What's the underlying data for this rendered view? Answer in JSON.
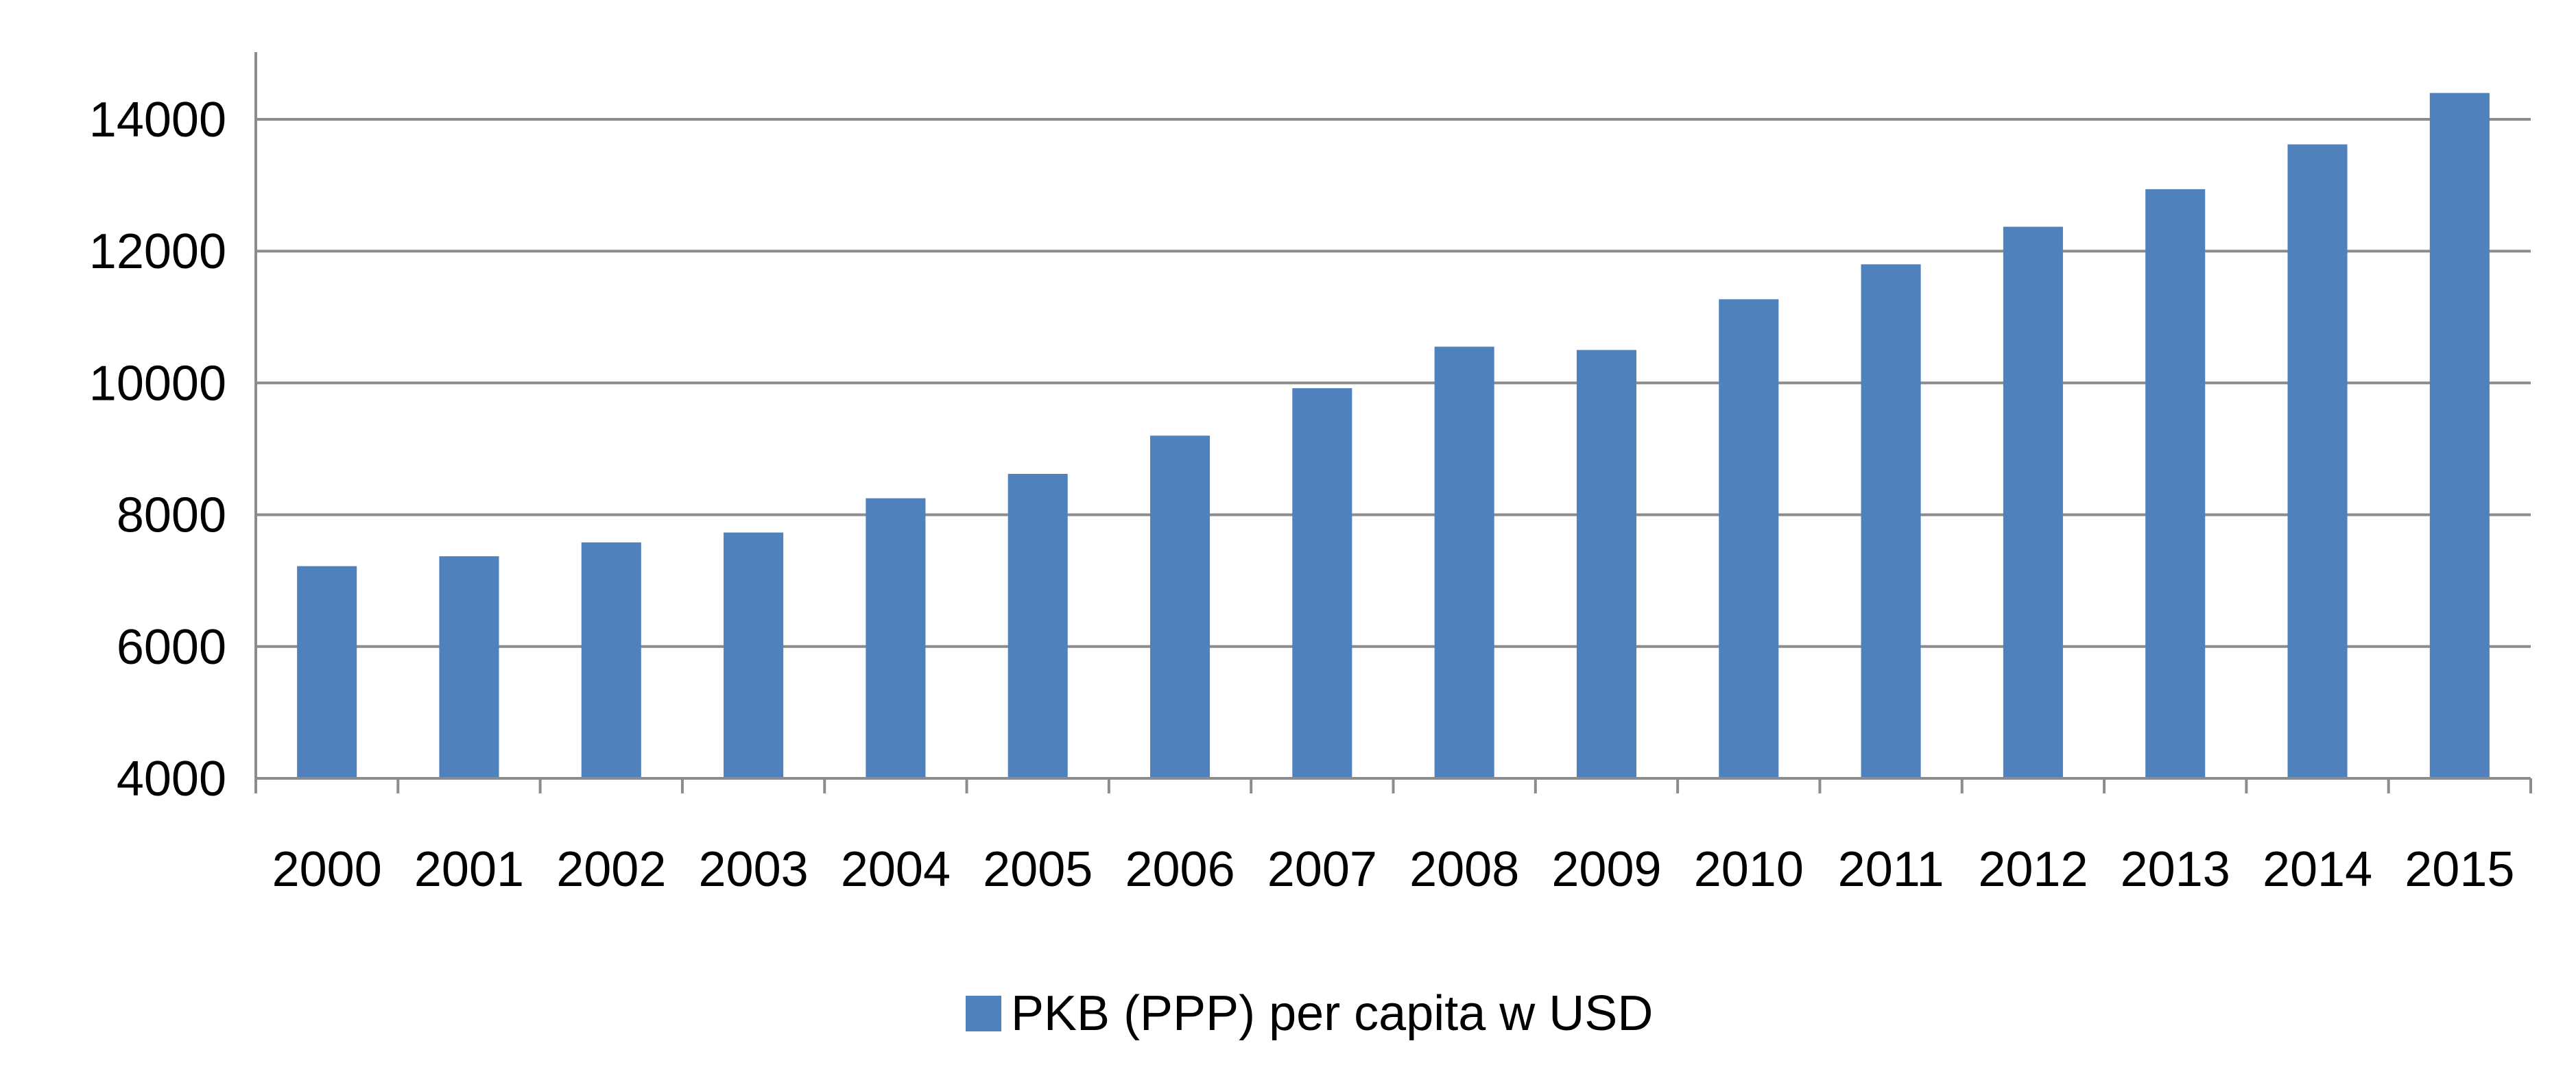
{
  "chart_data": {
    "type": "bar",
    "title": "",
    "xlabel": "",
    "ylabel": "",
    "categories": [
      "2000",
      "2001",
      "2002",
      "2003",
      "2004",
      "2005",
      "2006",
      "2007",
      "2008",
      "2009",
      "2010",
      "2011",
      "2012",
      "2013",
      "2014",
      "2015"
    ],
    "series": [
      {
        "name": "PKB (PPP) per capita w USD",
        "color": "#4F81BD",
        "values": [
          7220,
          7370,
          7580,
          7730,
          8250,
          8620,
          9200,
          9920,
          10550,
          10500,
          11270,
          11800,
          12370,
          12940,
          13620,
          14400
        ]
      }
    ],
    "ylim": [
      4000,
      15000
    ],
    "yticks": [
      4000,
      6000,
      8000,
      10000,
      12000,
      14000
    ],
    "grid": true,
    "legend_position": "bottom"
  }
}
